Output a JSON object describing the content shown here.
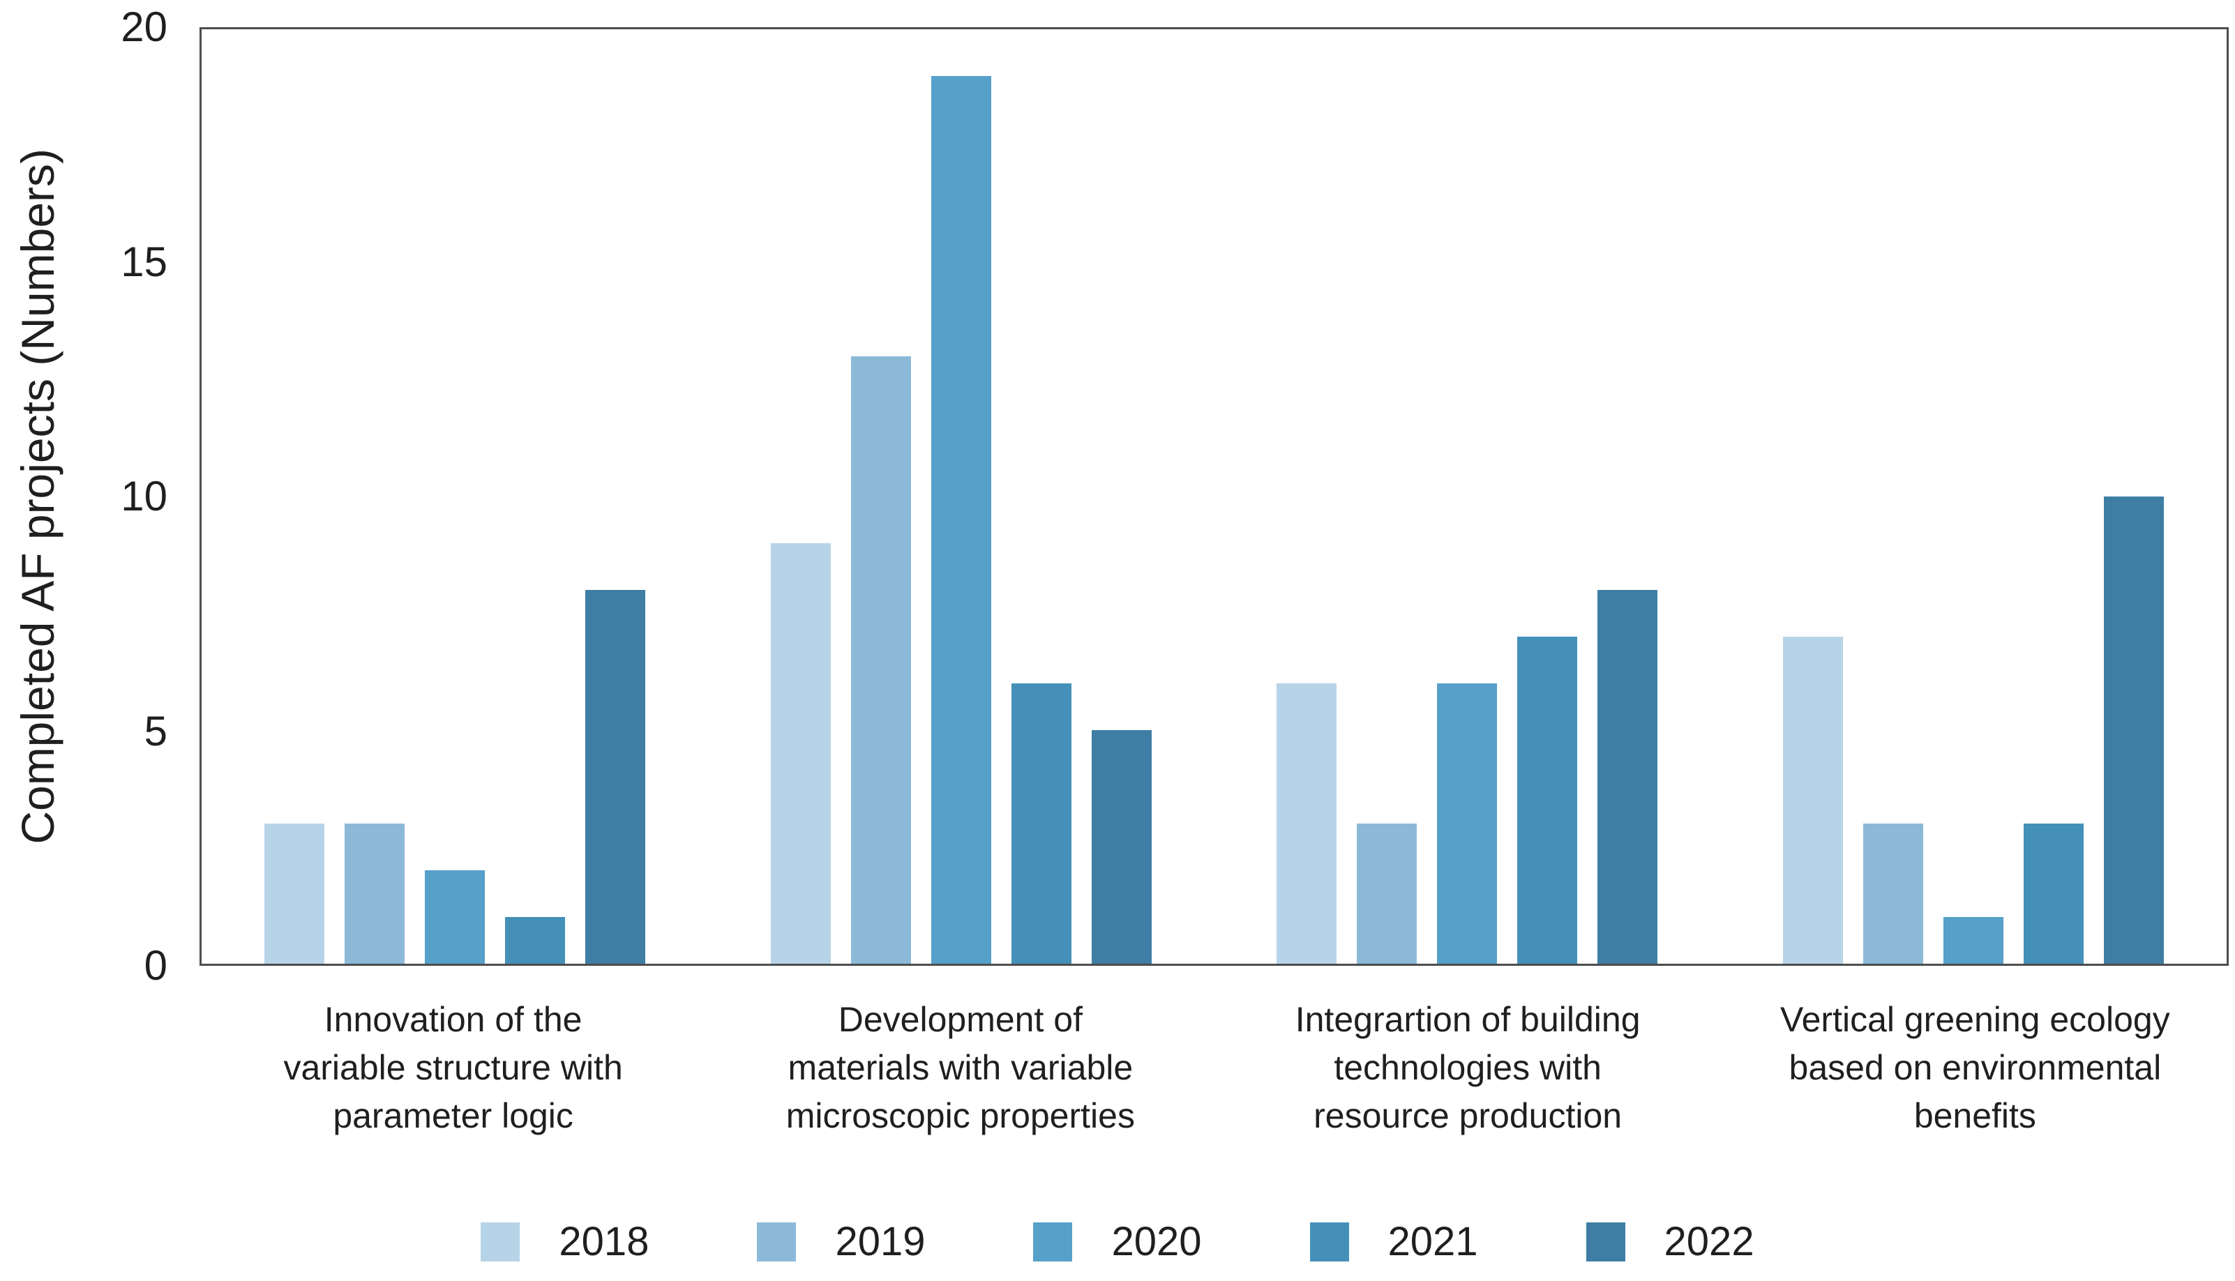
{
  "figure": {
    "background": "#ffffff",
    "text_color": "#1f1f1f",
    "axis_color": "#4d4d4d"
  },
  "chart_data": {
    "type": "bar",
    "title": "",
    "xlabel": "",
    "ylabel": "Completed AF projects (Numbers)",
    "ylim": [
      0,
      20
    ],
    "yticks": [
      0,
      5,
      10,
      15,
      20
    ],
    "grid": false,
    "legend_position": "bottom",
    "categories": [
      "Innovation of the variable structure with parameter logic",
      "Development of materials with variable microscopic properties",
      "Integrartion of building technologies with resource production",
      "Vertical greening ecology based on environmental benefits"
    ],
    "category_lines": [
      [
        "Innovation of the",
        "variable structure with",
        "parameter logic"
      ],
      [
        "Development of",
        "materials with variable",
        "microscopic properties"
      ],
      [
        "Integrartion of building",
        "technologies with",
        "resource production"
      ],
      [
        "Vertical greening ecology",
        "based on environmental",
        "benefits"
      ]
    ],
    "series": [
      {
        "name": "2018",
        "color": "#b7d3e8",
        "values": [
          3,
          9,
          6,
          7
        ]
      },
      {
        "name": "2019",
        "color": "#8db9d9",
        "values": [
          3,
          13,
          3,
          3
        ]
      },
      {
        "name": "2020",
        "color": "#57a0c9",
        "values": [
          2,
          19,
          6,
          1
        ]
      },
      {
        "name": "2021",
        "color": "#4590b8",
        "values": [
          1,
          6,
          7,
          3
        ]
      },
      {
        "name": "2022",
        "color": "#3e7ea4",
        "values": [
          8,
          5,
          8,
          10
        ]
      }
    ]
  }
}
